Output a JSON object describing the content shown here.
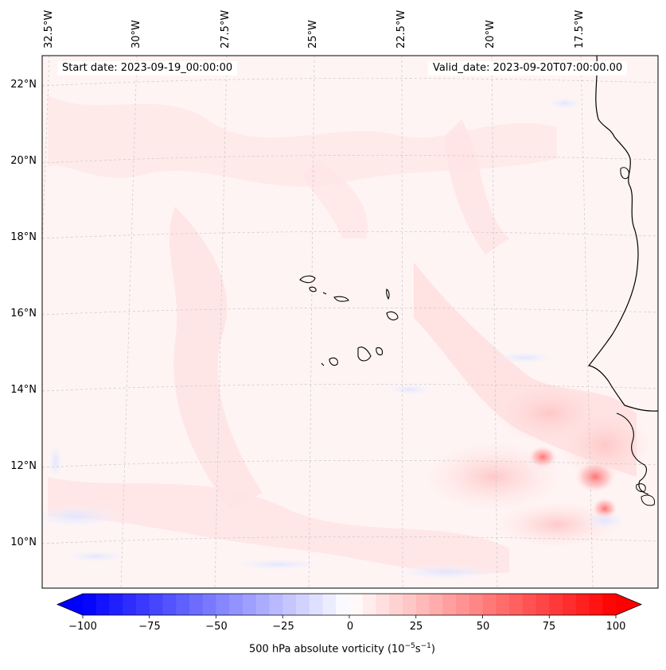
{
  "map": {
    "start_date_text": "Start date: 2023-09-19_00:00:00",
    "valid_date_text": "Valid_date: 2023-09-20T07:00:00.00",
    "lon_labels": [
      "32.5°W",
      "30°W",
      "27.5°W",
      "25°W",
      "22.5°W",
      "20°W",
      "17.5°W"
    ],
    "lat_labels": [
      "22°N",
      "20°N",
      "18°N",
      "16°N",
      "14°N",
      "12°N",
      "10°N"
    ],
    "gridlines": "on",
    "coastline_color": "#000000"
  },
  "colorbar": {
    "label_prefix": "500 hPa absolute vorticity (10",
    "label_exp1": "−5",
    "label_mid": "s",
    "label_exp2": "−1",
    "label_suffix": ")",
    "tick_labels": [
      "−100",
      "−75",
      "−50",
      "−25",
      "0",
      "25",
      "50",
      "75",
      "100"
    ],
    "min": -100,
    "max": 100,
    "colors": {
      "negative_end": "#0000ff",
      "zero": "#ffffff",
      "positive_end": "#ff0000"
    }
  }
}
